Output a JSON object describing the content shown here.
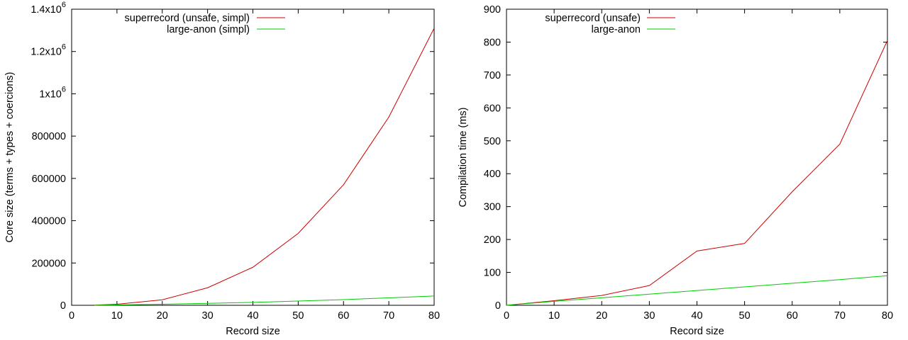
{
  "chart_data": [
    {
      "type": "line",
      "title": "",
      "xlabel": "Record size",
      "ylabel": "Core size (terms + types + coercions)",
      "xlim": [
        0,
        80
      ],
      "ylim": [
        0,
        1400000
      ],
      "xticks": [
        0,
        10,
        20,
        30,
        40,
        50,
        60,
        70,
        80
      ],
      "yticks": [
        {
          "value": 0,
          "label": "0"
        },
        {
          "value": 200000,
          "label": "200000"
        },
        {
          "value": 400000,
          "label": "400000"
        },
        {
          "value": 600000,
          "label": "600000"
        },
        {
          "value": 800000,
          "label": "800000"
        },
        {
          "value": 1000000,
          "label": "1x10",
          "exp": "6"
        },
        {
          "value": 1200000,
          "label": "1.2x10",
          "exp": "6"
        },
        {
          "value": 1400000,
          "label": "1.4x10",
          "exp": "6"
        }
      ],
      "grid": false,
      "legend_position": "top-left",
      "series": [
        {
          "name": "superrecord (unsafe, simpl)",
          "color": "#cc0000",
          "x": [
            5,
            10,
            20,
            30,
            40,
            50,
            60,
            70,
            80
          ],
          "y": [
            1000,
            5000,
            26000,
            83000,
            180000,
            340000,
            570000,
            890000,
            1310000
          ]
        },
        {
          "name": "large-anon (simpl)",
          "color": "#00cc00",
          "x": [
            5,
            10,
            20,
            30,
            40,
            50,
            60,
            70,
            80
          ],
          "y": [
            500,
            1500,
            5000,
            9000,
            14000,
            20000,
            27000,
            35000,
            44000
          ]
        }
      ]
    },
    {
      "type": "line",
      "title": "",
      "xlabel": "Record size",
      "ylabel": "Compilation time (ms)",
      "xlim": [
        0,
        80
      ],
      "ylim": [
        0,
        900
      ],
      "xticks": [
        0,
        10,
        20,
        30,
        40,
        50,
        60,
        70,
        80
      ],
      "yticks": [
        {
          "value": 0,
          "label": "0"
        },
        {
          "value": 100,
          "label": "100"
        },
        {
          "value": 200,
          "label": "200"
        },
        {
          "value": 300,
          "label": "300"
        },
        {
          "value": 400,
          "label": "400"
        },
        {
          "value": 500,
          "label": "500"
        },
        {
          "value": 600,
          "label": "600"
        },
        {
          "value": 700,
          "label": "700"
        },
        {
          "value": 800,
          "label": "800"
        },
        {
          "value": 900,
          "label": "900"
        }
      ],
      "grid": false,
      "legend_position": "top-left",
      "series": [
        {
          "name": "superrecord (unsafe)",
          "color": "#cc0000",
          "x": [
            0,
            10,
            20,
            30,
            40,
            50,
            60,
            70,
            80
          ],
          "y": [
            0,
            14,
            30,
            60,
            165,
            188,
            345,
            490,
            805
          ]
        },
        {
          "name": "large-anon",
          "color": "#00cc00",
          "x": [
            0,
            10,
            20,
            30,
            40,
            50,
            60,
            70,
            80
          ],
          "y": [
            0,
            12,
            23,
            34,
            45,
            56,
            67,
            78,
            90
          ]
        }
      ]
    }
  ]
}
